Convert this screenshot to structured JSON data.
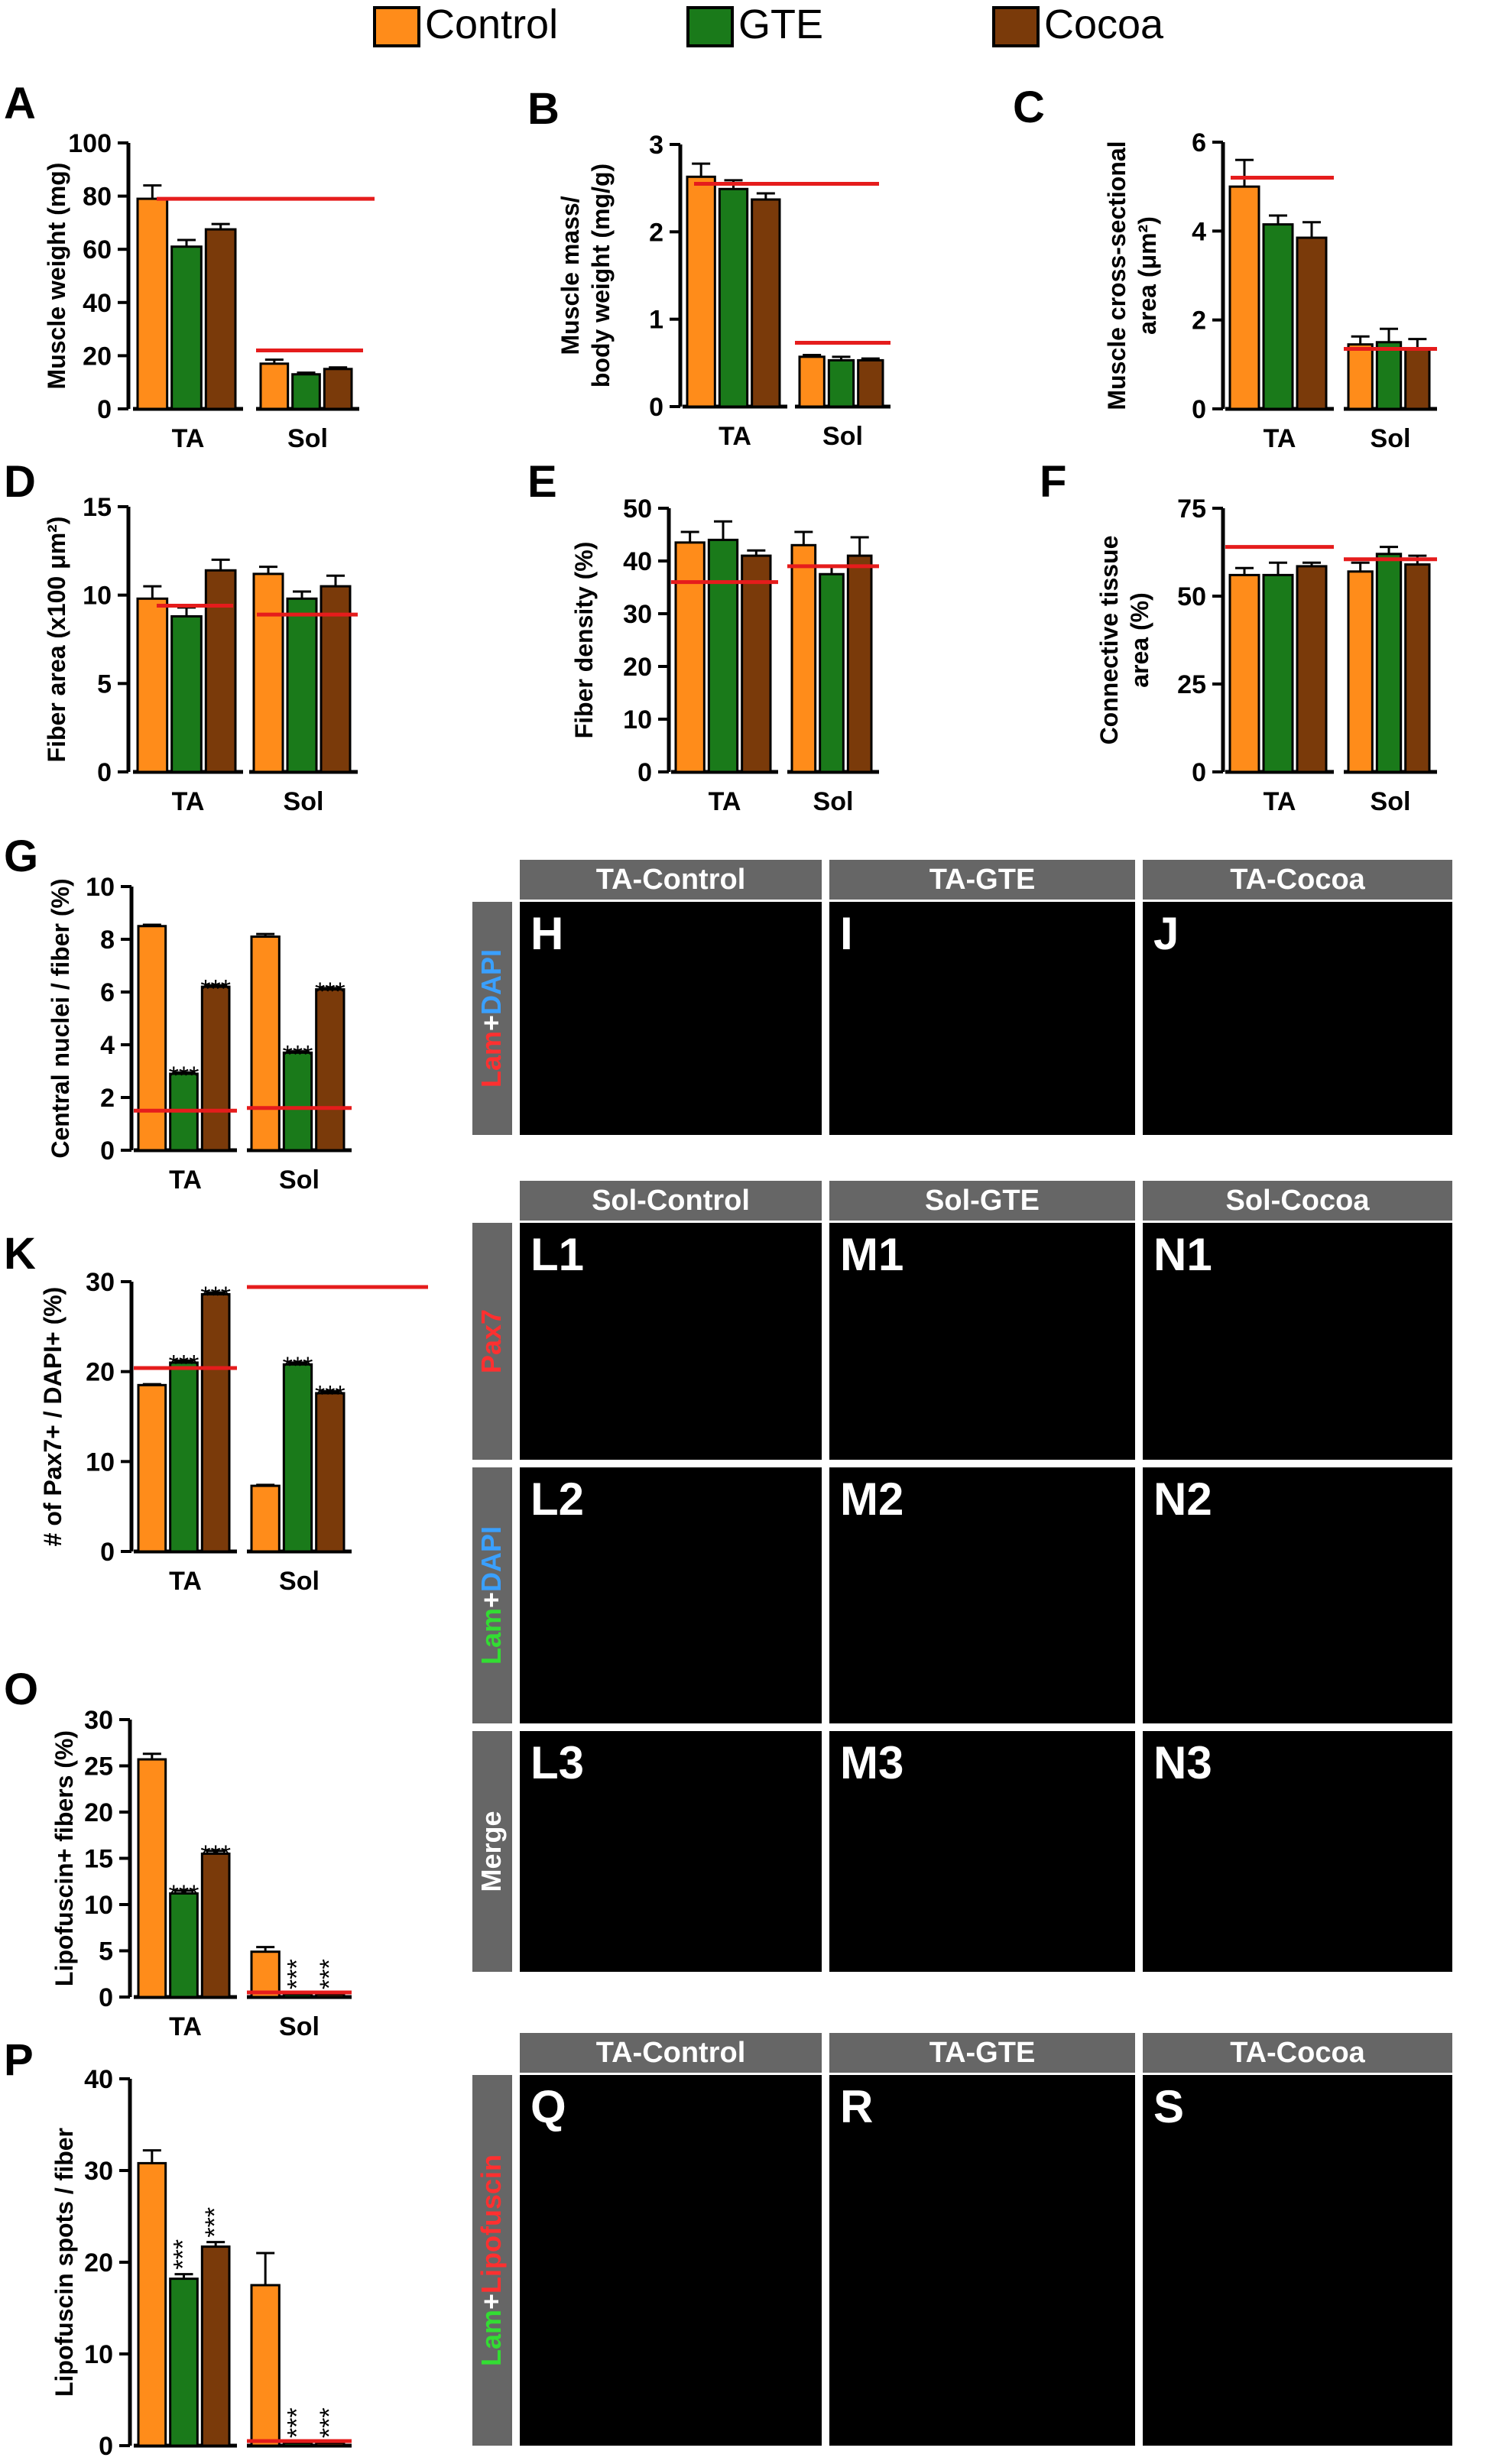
{
  "legend": [
    {
      "label": "Control",
      "color": "#ff8c1a"
    },
    {
      "label": "GTE",
      "color": "#1a7a1a"
    },
    {
      "label": "Cocoa",
      "color": "#7a3a0a"
    }
  ],
  "colors": {
    "ref_line": "#e51c1c",
    "axis": "#000000",
    "strip_bg": "#666666",
    "strip_text": "#ffffff",
    "photo_bg": "#000000"
  },
  "chart_data": [
    {
      "panel": "A",
      "type": "bar",
      "ylabel": "Muscle weight (mg)",
      "ylim": [
        0,
        100
      ],
      "yticks": [
        "0",
        "20",
        "40",
        "60",
        "80",
        "100"
      ],
      "categories": [
        "TA",
        "Sol"
      ],
      "series": [
        {
          "name": "Control",
          "values": [
            79,
            17
          ],
          "errors": [
            5,
            1.5
          ]
        },
        {
          "name": "GTE",
          "values": [
            61,
            13
          ],
          "errors": [
            2.5,
            0.6
          ]
        },
        {
          "name": "Cocoa",
          "values": [
            67.5,
            15
          ],
          "errors": [
            2,
            0.6
          ]
        }
      ],
      "reference": [
        79,
        22
      ],
      "significance": [
        [],
        [],
        []
      ]
    },
    {
      "panel": "B",
      "type": "bar",
      "ylabel": "Muscle mass/ body weight (mg/g)",
      "ylim": [
        0,
        3
      ],
      "yticks": [
        "0",
        "1",
        "2",
        "3"
      ],
      "categories": [
        "TA",
        "Sol"
      ],
      "series": [
        {
          "name": "Control",
          "values": [
            2.63,
            0.57
          ],
          "errors": [
            0.15,
            0.02
          ]
        },
        {
          "name": "GTE",
          "values": [
            2.49,
            0.53
          ],
          "errors": [
            0.1,
            0.04
          ]
        },
        {
          "name": "Cocoa",
          "values": [
            2.37,
            0.53
          ],
          "errors": [
            0.07,
            0.02
          ]
        }
      ],
      "reference": [
        2.55,
        0.73
      ],
      "significance": [
        [],
        [],
        []
      ]
    },
    {
      "panel": "C",
      "type": "bar",
      "ylabel": "Muscle cross-sectional area (μm²)",
      "ylim": [
        0,
        6
      ],
      "yticks": [
        "0",
        "2",
        "4",
        "6"
      ],
      "categories": [
        "TA",
        "Sol"
      ],
      "series": [
        {
          "name": "Control",
          "values": [
            5.0,
            1.45
          ],
          "errors": [
            0.6,
            0.18
          ]
        },
        {
          "name": "GTE",
          "values": [
            4.15,
            1.5
          ],
          "errors": [
            0.2,
            0.3
          ]
        },
        {
          "name": "Cocoa",
          "values": [
            3.85,
            1.35
          ],
          "errors": [
            0.35,
            0.22
          ]
        }
      ],
      "reference": [
        5.2,
        1.35
      ],
      "significance": [
        [],
        [],
        []
      ]
    },
    {
      "panel": "D",
      "type": "bar",
      "ylabel": "Fiber area (x100 μm²)",
      "ylim": [
        0,
        15
      ],
      "yticks": [
        "0",
        "5",
        "10",
        "15"
      ],
      "categories": [
        "TA",
        "Sol"
      ],
      "series": [
        {
          "name": "Control",
          "values": [
            9.8,
            11.2
          ],
          "errors": [
            0.7,
            0.4
          ]
        },
        {
          "name": "GTE",
          "values": [
            8.8,
            9.8
          ],
          "errors": [
            0.5,
            0.4
          ]
        },
        {
          "name": "Cocoa",
          "values": [
            11.4,
            10.5
          ],
          "errors": [
            0.6,
            0.6
          ]
        }
      ],
      "reference": [
        9.4,
        8.9
      ],
      "significance": [
        [],
        [],
        []
      ]
    },
    {
      "panel": "E",
      "type": "bar",
      "ylabel": "Fiber density (%)",
      "ylim": [
        0,
        50
      ],
      "yticks": [
        "0",
        "10",
        "20",
        "30",
        "40",
        "50"
      ],
      "categories": [
        "TA",
        "Sol"
      ],
      "series": [
        {
          "name": "Control",
          "values": [
            43.5,
            43
          ],
          "errors": [
            2,
            2.5
          ]
        },
        {
          "name": "GTE",
          "values": [
            44,
            37.5
          ],
          "errors": [
            3.5,
            1.5
          ]
        },
        {
          "name": "Cocoa",
          "values": [
            41,
            41
          ],
          "errors": [
            1,
            3.5
          ]
        }
      ],
      "reference": [
        36,
        39
      ],
      "significance": [
        [],
        [],
        []
      ]
    },
    {
      "panel": "F",
      "type": "bar",
      "ylabel": "Connective tissue area (%)",
      "ylim": [
        0,
        75
      ],
      "yticks": [
        "0",
        "25",
        "50",
        "75"
      ],
      "categories": [
        "TA",
        "Sol"
      ],
      "series": [
        {
          "name": "Control",
          "values": [
            56,
            57
          ],
          "errors": [
            2,
            2.5
          ]
        },
        {
          "name": "GTE",
          "values": [
            56,
            62
          ],
          "errors": [
            3.5,
            2
          ]
        },
        {
          "name": "Cocoa",
          "values": [
            58.5,
            59
          ],
          "errors": [
            1,
            2.5
          ]
        }
      ],
      "reference": [
        64,
        60.5
      ],
      "significance": [
        [],
        [],
        []
      ]
    },
    {
      "panel": "G",
      "type": "bar",
      "ylabel": "Central nuclei / fiber (%)",
      "ylim": [
        0,
        10
      ],
      "yticks": [
        "0",
        "2",
        "4",
        "6",
        "8",
        "10"
      ],
      "categories": [
        "TA",
        "Sol"
      ],
      "series": [
        {
          "name": "Control",
          "values": [
            8.5,
            8.1
          ],
          "errors": [
            0.05,
            0.1
          ]
        },
        {
          "name": "GTE",
          "values": [
            2.9,
            3.7
          ],
          "errors": [
            0.05,
            0.05
          ]
        },
        {
          "name": "Cocoa",
          "values": [
            6.2,
            6.1
          ],
          "errors": [
            0.05,
            0.05
          ]
        }
      ],
      "reference": [
        1.5,
        1.6
      ],
      "significance": [
        [
          "",
          ""
        ],
        [
          "***",
          "***"
        ],
        [
          "***",
          "***"
        ]
      ]
    },
    {
      "panel": "K",
      "type": "bar",
      "ylabel": "# of Pax7+ / DAPI+ (%)",
      "ylim": [
        0,
        30
      ],
      "yticks": [
        "0",
        "10",
        "20",
        "30"
      ],
      "categories": [
        "TA",
        "Sol"
      ],
      "series": [
        {
          "name": "Control",
          "values": [
            18.5,
            7.3
          ],
          "errors": [
            0.1,
            0.1
          ]
        },
        {
          "name": "GTE",
          "values": [
            21,
            20.8
          ],
          "errors": [
            0.2,
            0.2
          ]
        },
        {
          "name": "Cocoa",
          "values": [
            28.6,
            17.6
          ],
          "errors": [
            0.2,
            0.2
          ]
        }
      ],
      "reference": [
        20.4,
        29.4
      ],
      "significance": [
        [
          "",
          ""
        ],
        [
          "***",
          "***"
        ],
        [
          "***",
          "***"
        ]
      ]
    },
    {
      "panel": "O",
      "type": "bar",
      "ylabel": "Lipofuscin+ fibers (%)",
      "ylim": [
        0,
        30
      ],
      "yticks": [
        "0",
        "5",
        "10",
        "15",
        "20",
        "25",
        "30"
      ],
      "categories": [
        "TA",
        "Sol"
      ],
      "series": [
        {
          "name": "Control",
          "values": [
            25.7,
            4.9
          ],
          "errors": [
            0.6,
            0.5
          ]
        },
        {
          "name": "GTE",
          "values": [
            11.2,
            0.3
          ],
          "errors": [
            0.3,
            0
          ]
        },
        {
          "name": "Cocoa",
          "values": [
            15.5,
            0.3
          ],
          "errors": [
            0.3,
            0
          ]
        }
      ],
      "reference": [
        null,
        0.5
      ],
      "significance": [
        [
          "",
          ""
        ],
        [
          "***",
          "***"
        ],
        [
          "***",
          "***"
        ]
      ]
    },
    {
      "panel": "P",
      "type": "bar",
      "ylabel": "Lipofuscin spots / fiber",
      "ylim": [
        0,
        40
      ],
      "yticks": [
        "0",
        "10",
        "20",
        "30",
        "40"
      ],
      "categories": [
        "TA",
        "Sol"
      ],
      "series": [
        {
          "name": "Control",
          "values": [
            30.8,
            17.5
          ],
          "errors": [
            1.4,
            3.5
          ]
        },
        {
          "name": "GTE",
          "values": [
            18.2,
            0.3
          ],
          "errors": [
            0.5,
            0
          ]
        },
        {
          "name": "Cocoa",
          "values": [
            21.7,
            0.3
          ],
          "errors": [
            0.5,
            0
          ]
        }
      ],
      "reference": [
        null,
        0.5
      ],
      "significance": [
        [
          "",
          ""
        ],
        [
          "***",
          "***"
        ],
        [
          "***",
          "***"
        ]
      ]
    }
  ],
  "micrographs": [
    {
      "headers": [
        "TA-Control",
        "TA-GTE",
        "TA-Cocoa"
      ],
      "rows": [
        {
          "side": [
            "Lam",
            "+",
            "DAPI"
          ],
          "side_colors": [
            "#ff3030",
            "#ffffff",
            "#3aa0ff"
          ],
          "panels": [
            "H",
            "I",
            "J"
          ]
        }
      ]
    },
    {
      "headers": [
        "Sol-Control",
        "Sol-GTE",
        "Sol-Cocoa"
      ],
      "rows": [
        {
          "side": [
            "Pax7"
          ],
          "side_colors": [
            "#ff3030"
          ],
          "panels": [
            "L1",
            "M1",
            "N1"
          ]
        },
        {
          "side": [
            "Lam",
            "+",
            "DAPI"
          ],
          "side_colors": [
            "#33dd33",
            "#ffffff",
            "#3aa0ff"
          ],
          "panels": [
            "L2",
            "M2",
            "N2"
          ]
        },
        {
          "side": [
            "Merge"
          ],
          "side_colors": [
            "#ffffff"
          ],
          "panels": [
            "L3",
            "M3",
            "N3"
          ]
        }
      ]
    },
    {
      "headers": [
        "TA-Control",
        "TA-GTE",
        "TA-Cocoa"
      ],
      "rows": [
        {
          "side": [
            "Lam",
            "+",
            "Lipofuscin"
          ],
          "side_colors": [
            "#33dd33",
            "#ffffff",
            "#ff3030"
          ],
          "panels": [
            "Q",
            "R",
            "S"
          ]
        }
      ]
    }
  ]
}
